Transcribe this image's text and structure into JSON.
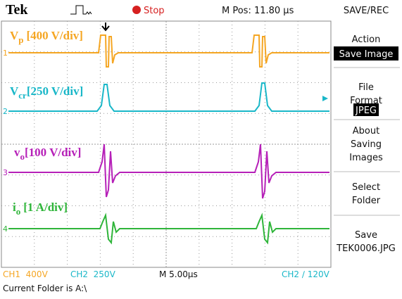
{
  "header": {
    "brand": "Tek",
    "status": "Stop",
    "position": "M Pos: 11.80 µs",
    "menu_title": "SAVE/REC"
  },
  "channels": [
    {
      "marker": "1",
      "symbol": "V",
      "subscript": "p",
      "scale": "[400 V/div]"
    },
    {
      "marker": "2",
      "symbol": "V",
      "subscript": "cr",
      "scale": "[250 V/div]"
    },
    {
      "marker": "3",
      "symbol": "v",
      "subscript": "o",
      "scale": "[100 V/div]"
    },
    {
      "marker": "4",
      "symbol": "i",
      "subscript": "o",
      "scale": "[1 A/div]"
    }
  ],
  "menu": [
    {
      "label": "Action",
      "value": "Save Image"
    },
    {
      "label": "File Format",
      "value": "JPEG"
    },
    {
      "label": "About Saving Images"
    },
    {
      "label": "Select Folder"
    },
    {
      "label": "Save",
      "value": "TEK0006.JPG"
    }
  ],
  "status_bar": {
    "ch1": "CH1  400V",
    "ch2": "CH2  250V",
    "timebase": "M 5.00µs",
    "trigger": "CH2 ∕ 120V"
  },
  "footer": "Current Folder is A:\\"
}
